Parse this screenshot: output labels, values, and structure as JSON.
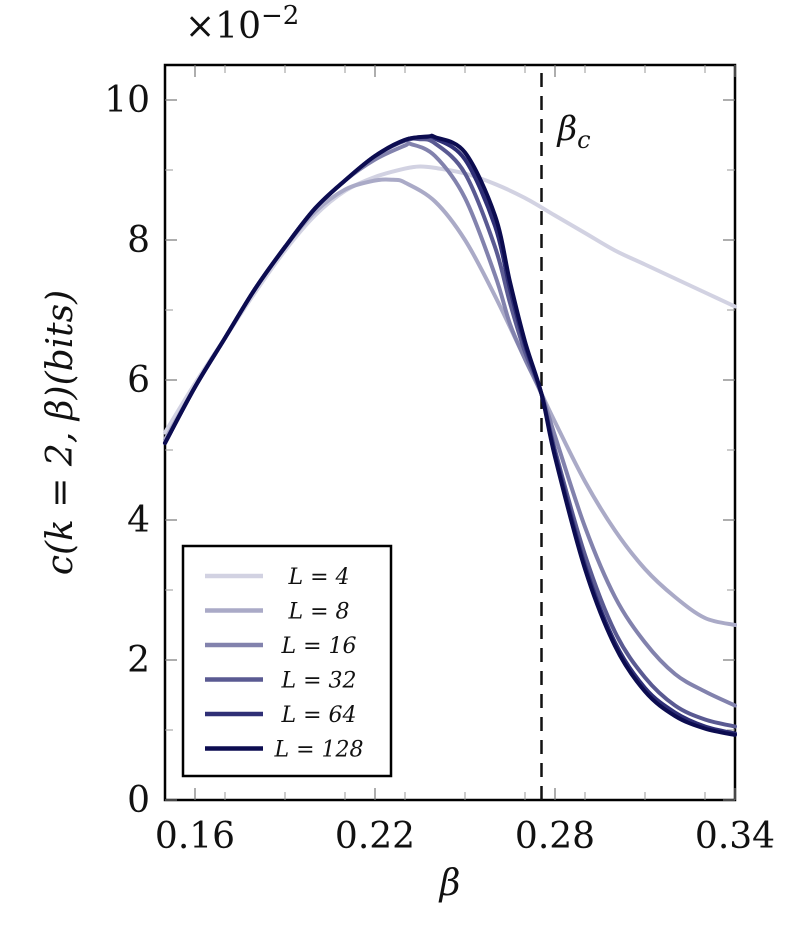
{
  "chart_data": {
    "type": "line",
    "xlabel": "β",
    "ylabel": "c(k = 2, β)(bits)",
    "y_multiplier": "×10",
    "y_multiplier_exp": "−2",
    "xlim": [
      0.15,
      0.34
    ],
    "ylim": [
      0,
      10.5
    ],
    "xticks": [
      0.16,
      0.22,
      0.28,
      0.34
    ],
    "xtick_labels": [
      "0.16",
      "0.22",
      "0.28",
      "0.34"
    ],
    "yticks": [
      0,
      2,
      4,
      6,
      8,
      10
    ],
    "ytick_labels": [
      "0",
      "2",
      "4",
      "6",
      "8",
      "10"
    ],
    "grid": false,
    "legend_position": "bottom-left",
    "annotation": {
      "label": "β",
      "subscript": "c",
      "x": 0.2755
    },
    "series": [
      {
        "name": "L = 4",
        "color": "#d2d2e2",
        "x": [
          0.15,
          0.16,
          0.17,
          0.18,
          0.19,
          0.2,
          0.21,
          0.22,
          0.23,
          0.235,
          0.24,
          0.25,
          0.26,
          0.27,
          0.28,
          0.29,
          0.3,
          0.31,
          0.32,
          0.33,
          0.34
        ],
        "y": [
          5.25,
          5.95,
          6.6,
          7.25,
          7.85,
          8.35,
          8.7,
          8.9,
          9.02,
          9.05,
          9.03,
          8.95,
          8.8,
          8.6,
          8.35,
          8.1,
          7.85,
          7.65,
          7.45,
          7.25,
          7.05
        ]
      },
      {
        "name": "L = 8",
        "color": "#aaaac7",
        "x": [
          0.15,
          0.16,
          0.17,
          0.18,
          0.19,
          0.2,
          0.21,
          0.22,
          0.226,
          0.23,
          0.24,
          0.25,
          0.26,
          0.27,
          0.275,
          0.28,
          0.29,
          0.3,
          0.31,
          0.32,
          0.33,
          0.34
        ],
        "y": [
          5.15,
          5.9,
          6.6,
          7.3,
          7.9,
          8.4,
          8.72,
          8.85,
          8.86,
          8.82,
          8.55,
          8.0,
          7.2,
          6.3,
          5.85,
          5.4,
          4.55,
          3.85,
          3.3,
          2.9,
          2.6,
          2.5
        ]
      },
      {
        "name": "L = 16",
        "color": "#8282ad",
        "x": [
          0.15,
          0.16,
          0.17,
          0.18,
          0.19,
          0.2,
          0.21,
          0.22,
          0.23,
          0.232,
          0.24,
          0.25,
          0.26,
          0.265,
          0.27,
          0.2755,
          0.28,
          0.29,
          0.3,
          0.31,
          0.32,
          0.33,
          0.34
        ],
        "y": [
          5.1,
          5.9,
          6.6,
          7.3,
          7.9,
          8.45,
          8.85,
          9.15,
          9.35,
          9.37,
          9.2,
          8.6,
          7.5,
          6.8,
          6.3,
          5.8,
          5.2,
          3.9,
          2.9,
          2.25,
          1.8,
          1.55,
          1.35
        ]
      },
      {
        "name": "L = 32",
        "color": "#5a5a92",
        "x": [
          0.15,
          0.16,
          0.17,
          0.18,
          0.19,
          0.2,
          0.21,
          0.22,
          0.23,
          0.235,
          0.24,
          0.25,
          0.26,
          0.265,
          0.27,
          0.2755,
          0.28,
          0.29,
          0.3,
          0.31,
          0.32,
          0.33,
          0.34
        ],
        "y": [
          5.1,
          5.9,
          6.6,
          7.3,
          7.9,
          8.45,
          8.85,
          9.2,
          9.42,
          9.44,
          9.38,
          8.95,
          7.9,
          7.1,
          6.4,
          5.8,
          5.0,
          3.5,
          2.4,
          1.75,
          1.35,
          1.15,
          1.05
        ]
      },
      {
        "name": "L = 64",
        "color": "#2f2f76",
        "x": [
          0.15,
          0.16,
          0.17,
          0.18,
          0.19,
          0.2,
          0.21,
          0.22,
          0.23,
          0.237,
          0.24,
          0.25,
          0.26,
          0.265,
          0.27,
          0.2755,
          0.28,
          0.29,
          0.3,
          0.31,
          0.32,
          0.33,
          0.34
        ],
        "y": [
          5.1,
          5.9,
          6.6,
          7.3,
          7.9,
          8.45,
          8.85,
          9.2,
          9.43,
          9.47,
          9.45,
          9.15,
          8.2,
          7.3,
          6.5,
          5.8,
          4.95,
          3.35,
          2.25,
          1.6,
          1.25,
          1.05,
          0.95
        ]
      },
      {
        "name": "L = 128",
        "color": "#0c0c50",
        "x": [
          0.15,
          0.16,
          0.17,
          0.18,
          0.19,
          0.2,
          0.21,
          0.22,
          0.23,
          0.238,
          0.24,
          0.25,
          0.26,
          0.265,
          0.27,
          0.2755,
          0.28,
          0.29,
          0.3,
          0.31,
          0.32,
          0.33,
          0.34
        ],
        "y": [
          5.1,
          5.9,
          6.6,
          7.3,
          7.9,
          8.45,
          8.85,
          9.2,
          9.43,
          9.48,
          9.47,
          9.25,
          8.35,
          7.4,
          6.55,
          5.8,
          4.9,
          3.3,
          2.2,
          1.55,
          1.2,
          1.02,
          0.93
        ]
      }
    ]
  }
}
